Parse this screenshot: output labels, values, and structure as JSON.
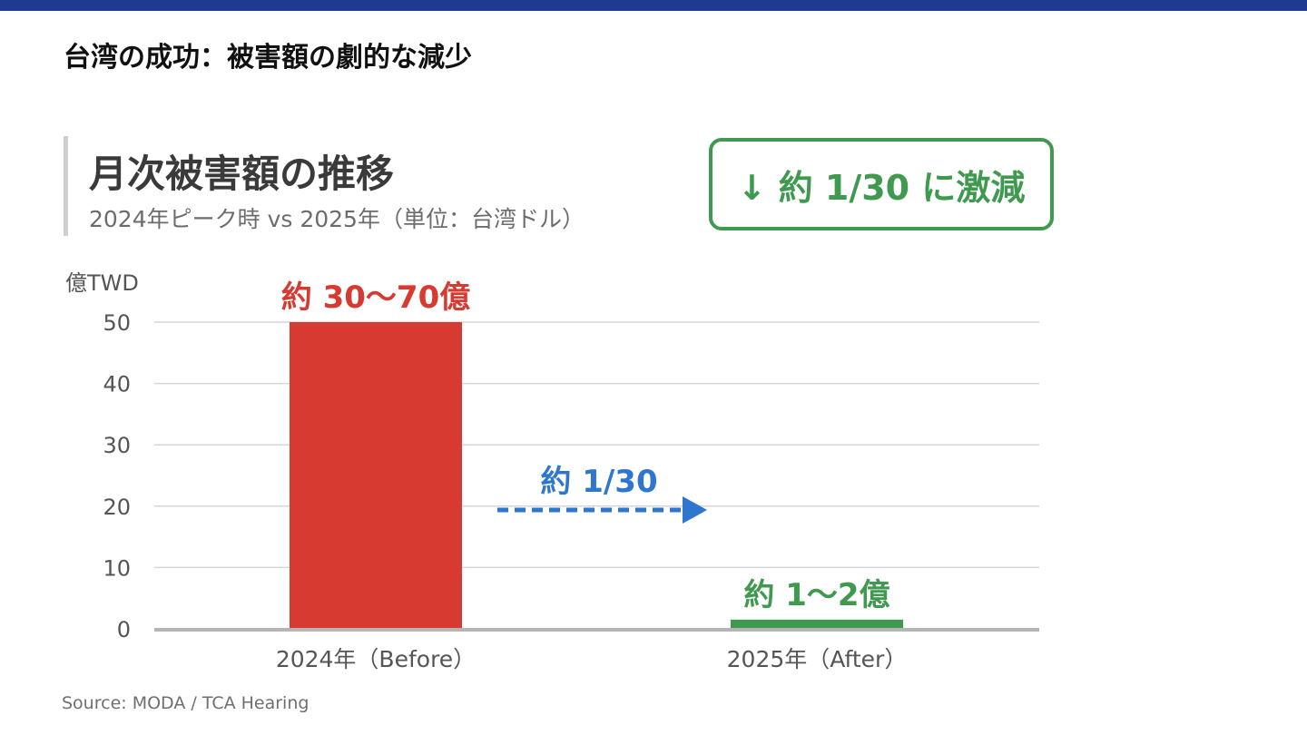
{
  "page": {
    "title": "台湾の成功：被害額の劇的な減少",
    "source": "Source: MODA / TCA Hearing"
  },
  "colors": {
    "header_bar": "#1f3b8f",
    "before_bar": "#d63a31",
    "after_bar": "#3f9a4f",
    "arrow": "#2e76d0"
  },
  "chart_data": {
    "type": "bar",
    "title": "月次被害額の推移",
    "subtitle": "2024年ピーク時 vs 2025年（単位：台湾ドル）",
    "ylabel": "億TWD",
    "xlabel": "",
    "ylim": [
      0,
      50
    ],
    "yticks": [
      0,
      10,
      20,
      30,
      40,
      50
    ],
    "grid": true,
    "categories": [
      "2024年（Before）",
      "2025年（After）"
    ],
    "values": [
      50,
      1.5
    ],
    "value_labels": [
      "約 30〜70億",
      "約 1〜2億"
    ],
    "bar_colors": [
      "#d63a31",
      "#3f9a4f"
    ],
    "annotations": {
      "callout": "↓ 約 1/30 に激減",
      "arrow_label": "約 1/30",
      "arrow_icon": "dashed-right-arrow-icon"
    }
  }
}
